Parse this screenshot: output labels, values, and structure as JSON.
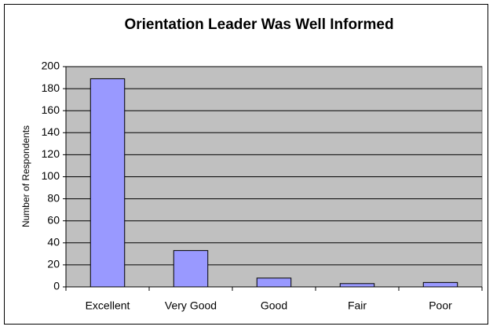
{
  "chart_data": {
    "type": "bar",
    "title": "Orientation Leader Was Well Informed",
    "y_label": "Number of Respondents",
    "categories": [
      "Excellent",
      "Very Good",
      "Good",
      "Fair",
      "Poor"
    ],
    "values": [
      189,
      33,
      8,
      3,
      4
    ],
    "color": "#9999ff",
    "ylim": [
      0,
      200
    ],
    "yticks": [
      0,
      20,
      40,
      60,
      80,
      100,
      120,
      140,
      160,
      180,
      200
    ],
    "grid": true
  }
}
